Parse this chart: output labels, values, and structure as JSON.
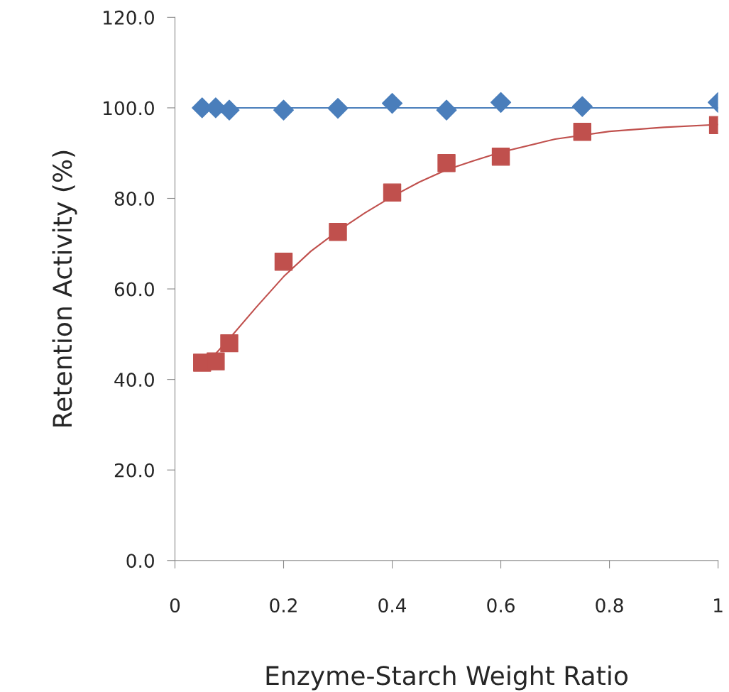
{
  "chart_data": {
    "type": "scatter",
    "xlabel": "Enzyme-Starch Weight Ratio",
    "ylabel": "Retention Activity (%)",
    "xlim": [
      0,
      1
    ],
    "xticks": [
      0,
      {
        "value": 0.2,
        "label": "0.2"
      },
      {
        "value": 0.4,
        "label": "0.4"
      },
      {
        "value": 0.6,
        "label": "0.6"
      },
      {
        "value": 0.8,
        "label": "0.8"
      },
      1
    ],
    "ylim": [
      0,
      120
    ],
    "yticks": [
      {
        "value": 0,
        "label": "0.0"
      },
      {
        "value": 20,
        "label": "20.0"
      },
      {
        "value": 40,
        "label": "40.0"
      },
      {
        "value": 60,
        "label": "60.0"
      },
      {
        "value": 80,
        "label": "80.0"
      },
      {
        "value": 100,
        "label": "100.0"
      },
      {
        "value": 120,
        "label": "120.0"
      }
    ],
    "grid": false,
    "legend": false,
    "series": [
      {
        "type": "line",
        "color": "#4a7ebb",
        "marker": "none",
        "x": [
          0.05,
          1.0
        ],
        "values": [
          100.0,
          100.0
        ]
      },
      {
        "type": "line",
        "color": "#c0504d",
        "marker": "none",
        "x": [
          0.05,
          0.075,
          0.1,
          0.15,
          0.2,
          0.25,
          0.3,
          0.35,
          0.4,
          0.45,
          0.5,
          0.55,
          0.6,
          0.7,
          0.8,
          0.9,
          1.0
        ],
        "values": [
          43.7,
          45.7,
          49,
          56,
          62.7,
          68.3,
          72.8,
          76.8,
          80.4,
          83.6,
          86.3,
          88.3,
          90.2,
          93.1,
          94.8,
          95.7,
          96.3
        ]
      },
      {
        "color": "#4a7ebb",
        "marker": "diamond",
        "x": [
          0.05,
          0.075,
          0.1,
          0.2,
          0.3,
          0.4,
          0.5,
          0.6,
          0.75,
          1.0
        ],
        "values": [
          100.0,
          100.0,
          99.5,
          99.5,
          99.9,
          101.0,
          99.5,
          101.2,
          100.3,
          101.2
        ]
      },
      {
        "color": "#c0504d",
        "marker": "square",
        "x": [
          0.05,
          0.075,
          0.1,
          0.2,
          0.3,
          0.4,
          0.5,
          0.6,
          0.75,
          1.0
        ],
        "values": [
          43.7,
          44.0,
          48.0,
          66.0,
          72.6,
          81.3,
          87.8,
          89.2,
          94.7,
          96.2
        ]
      }
    ]
  }
}
